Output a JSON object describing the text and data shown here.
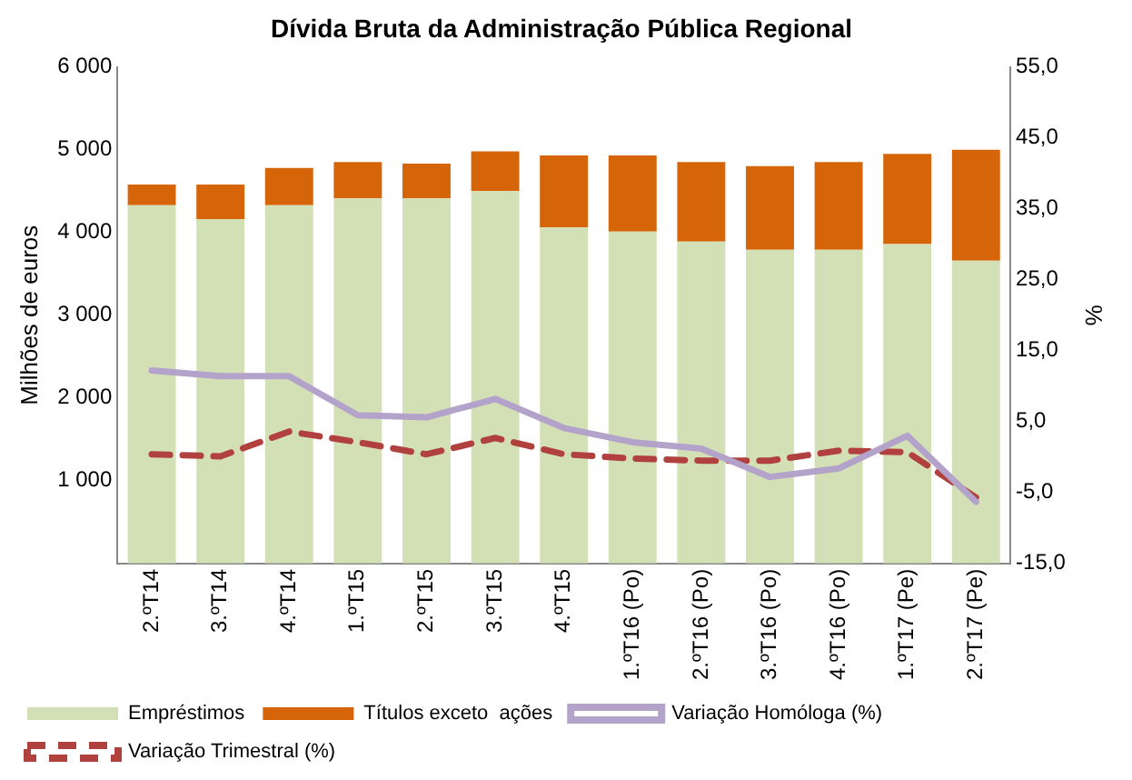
{
  "chart_data": {
    "type": "bar",
    "title": "Dívida Bruta da Administração Pública Regional",
    "ylabel": "Milhões de euros",
    "y2label": "%",
    "categories": [
      "2.ºT14",
      "3.ºT14",
      "4.ºT14",
      "1.ºT15",
      "2.ºT15",
      "3.ºT15",
      "4.ºT15",
      "1.ºT16 (Po)",
      "2.ºT16 (Po)",
      "3.ºT16 (Po)",
      "4.ºT16 (Po)",
      "1.ºT17 (Pe)",
      "2.ºT17 (Pe)"
    ],
    "stacked": true,
    "legend": "bottom",
    "grid": false,
    "ylim": [
      0,
      6000
    ],
    "yticks": [
      {
        "value": 1000,
        "label": "1 000"
      },
      {
        "value": 2000,
        "label": "2 000"
      },
      {
        "value": 3000,
        "label": "3 000"
      },
      {
        "value": 4000,
        "label": "4 000"
      },
      {
        "value": 5000,
        "label": "5 000"
      },
      {
        "value": 6000,
        "label": "6 000"
      }
    ],
    "y2lim": [
      -15,
      55
    ],
    "y2ticks": [
      {
        "value": -15,
        "label": "-15,0"
      },
      {
        "value": -5,
        "label": "-5,0"
      },
      {
        "value": 5,
        "label": "5,0"
      },
      {
        "value": 15,
        "label": "15,0"
      },
      {
        "value": 25,
        "label": "25,0"
      },
      {
        "value": 35,
        "label": "35,0"
      },
      {
        "value": 45,
        "label": "45,0"
      },
      {
        "value": 55,
        "label": "55,0"
      }
    ],
    "series": [
      {
        "name": "Empréstimos",
        "color": "#d3e0b6",
        "values": [
          4330,
          4160,
          4330,
          4410,
          4410,
          4500,
          4060,
          4010,
          3890,
          3790,
          3790,
          3860,
          3660
        ]
      },
      {
        "name": "Títulos exceto  ações",
        "color": "#d6650a",
        "values": [
          250,
          420,
          450,
          440,
          420,
          480,
          870,
          920,
          960,
          1010,
          1060,
          1090,
          1340
        ]
      },
      {
        "name": "Variação Homóloga (%)",
        "type": "line",
        "axis": "y2",
        "color": "#b3a2c9",
        "line_style": "solid",
        "marker": "none",
        "values": [
          12.2,
          11.4,
          11.4,
          5.9,
          5.6,
          8.2,
          4.1,
          2.1,
          1.2,
          -2.8,
          -1.6,
          3.0,
          -6.3
        ]
      },
      {
        "name": "Variação Trimestral (%)",
        "type": "line",
        "axis": "y2",
        "color": "#b0413e",
        "line_style": "dashed",
        "marker": "none",
        "values": [
          0.4,
          0.1,
          3.6,
          2.1,
          0.4,
          2.7,
          0.4,
          -0.2,
          -0.5,
          -0.5,
          0.9,
          0.7,
          -5.7
        ]
      }
    ]
  }
}
